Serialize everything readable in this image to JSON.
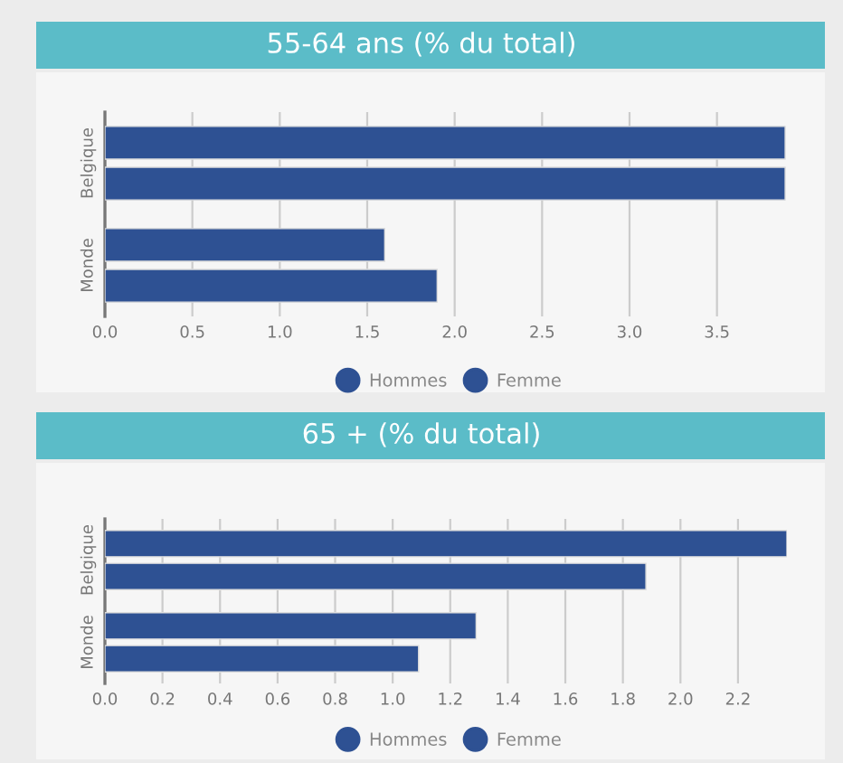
{
  "chart_data": [
    {
      "type": "bar",
      "orientation": "horizontal",
      "title": "55-64 ans (% du total)",
      "categories": [
        "Belgique",
        "Monde"
      ],
      "series": [
        {
          "name": "Hommes",
          "color": "#2e5193",
          "values": [
            3.89,
            1.6
          ]
        },
        {
          "name": "Femme",
          "color": "#2e5193",
          "values": [
            3.89,
            1.9
          ]
        }
      ],
      "xlim": [
        0,
        3.9
      ],
      "xticks": [
        {
          "value": 0,
          "label": "0.0"
        },
        0.5,
        {
          "value": 1,
          "label": "1.0"
        },
        1.5,
        {
          "value": 2,
          "label": "2.0"
        },
        2.5,
        {
          "value": 3,
          "label": "3.0"
        },
        3.5
      ],
      "grid": "x",
      "legend": "bottom"
    },
    {
      "type": "bar",
      "orientation": "horizontal",
      "title": "65 + (% du total)",
      "categories": [
        "Belgique",
        "Monde"
      ],
      "series": [
        {
          "name": "Hommes",
          "color": "#2e5193",
          "values": [
            2.37,
            1.29
          ]
        },
        {
          "name": "Femme",
          "color": "#2e5193",
          "values": [
            1.88,
            1.09
          ]
        }
      ],
      "xlim": [
        0,
        2.37
      ],
      "xticks": [
        {
          "value": 0,
          "label": "0.0"
        },
        0.2,
        0.4,
        0.6,
        0.8,
        {
          "value": 1,
          "label": "1.0"
        },
        1.2,
        1.4,
        1.6,
        1.8,
        {
          "value": 2,
          "label": "2.0"
        },
        2.2
      ],
      "grid": "x",
      "legend": "bottom"
    }
  ]
}
